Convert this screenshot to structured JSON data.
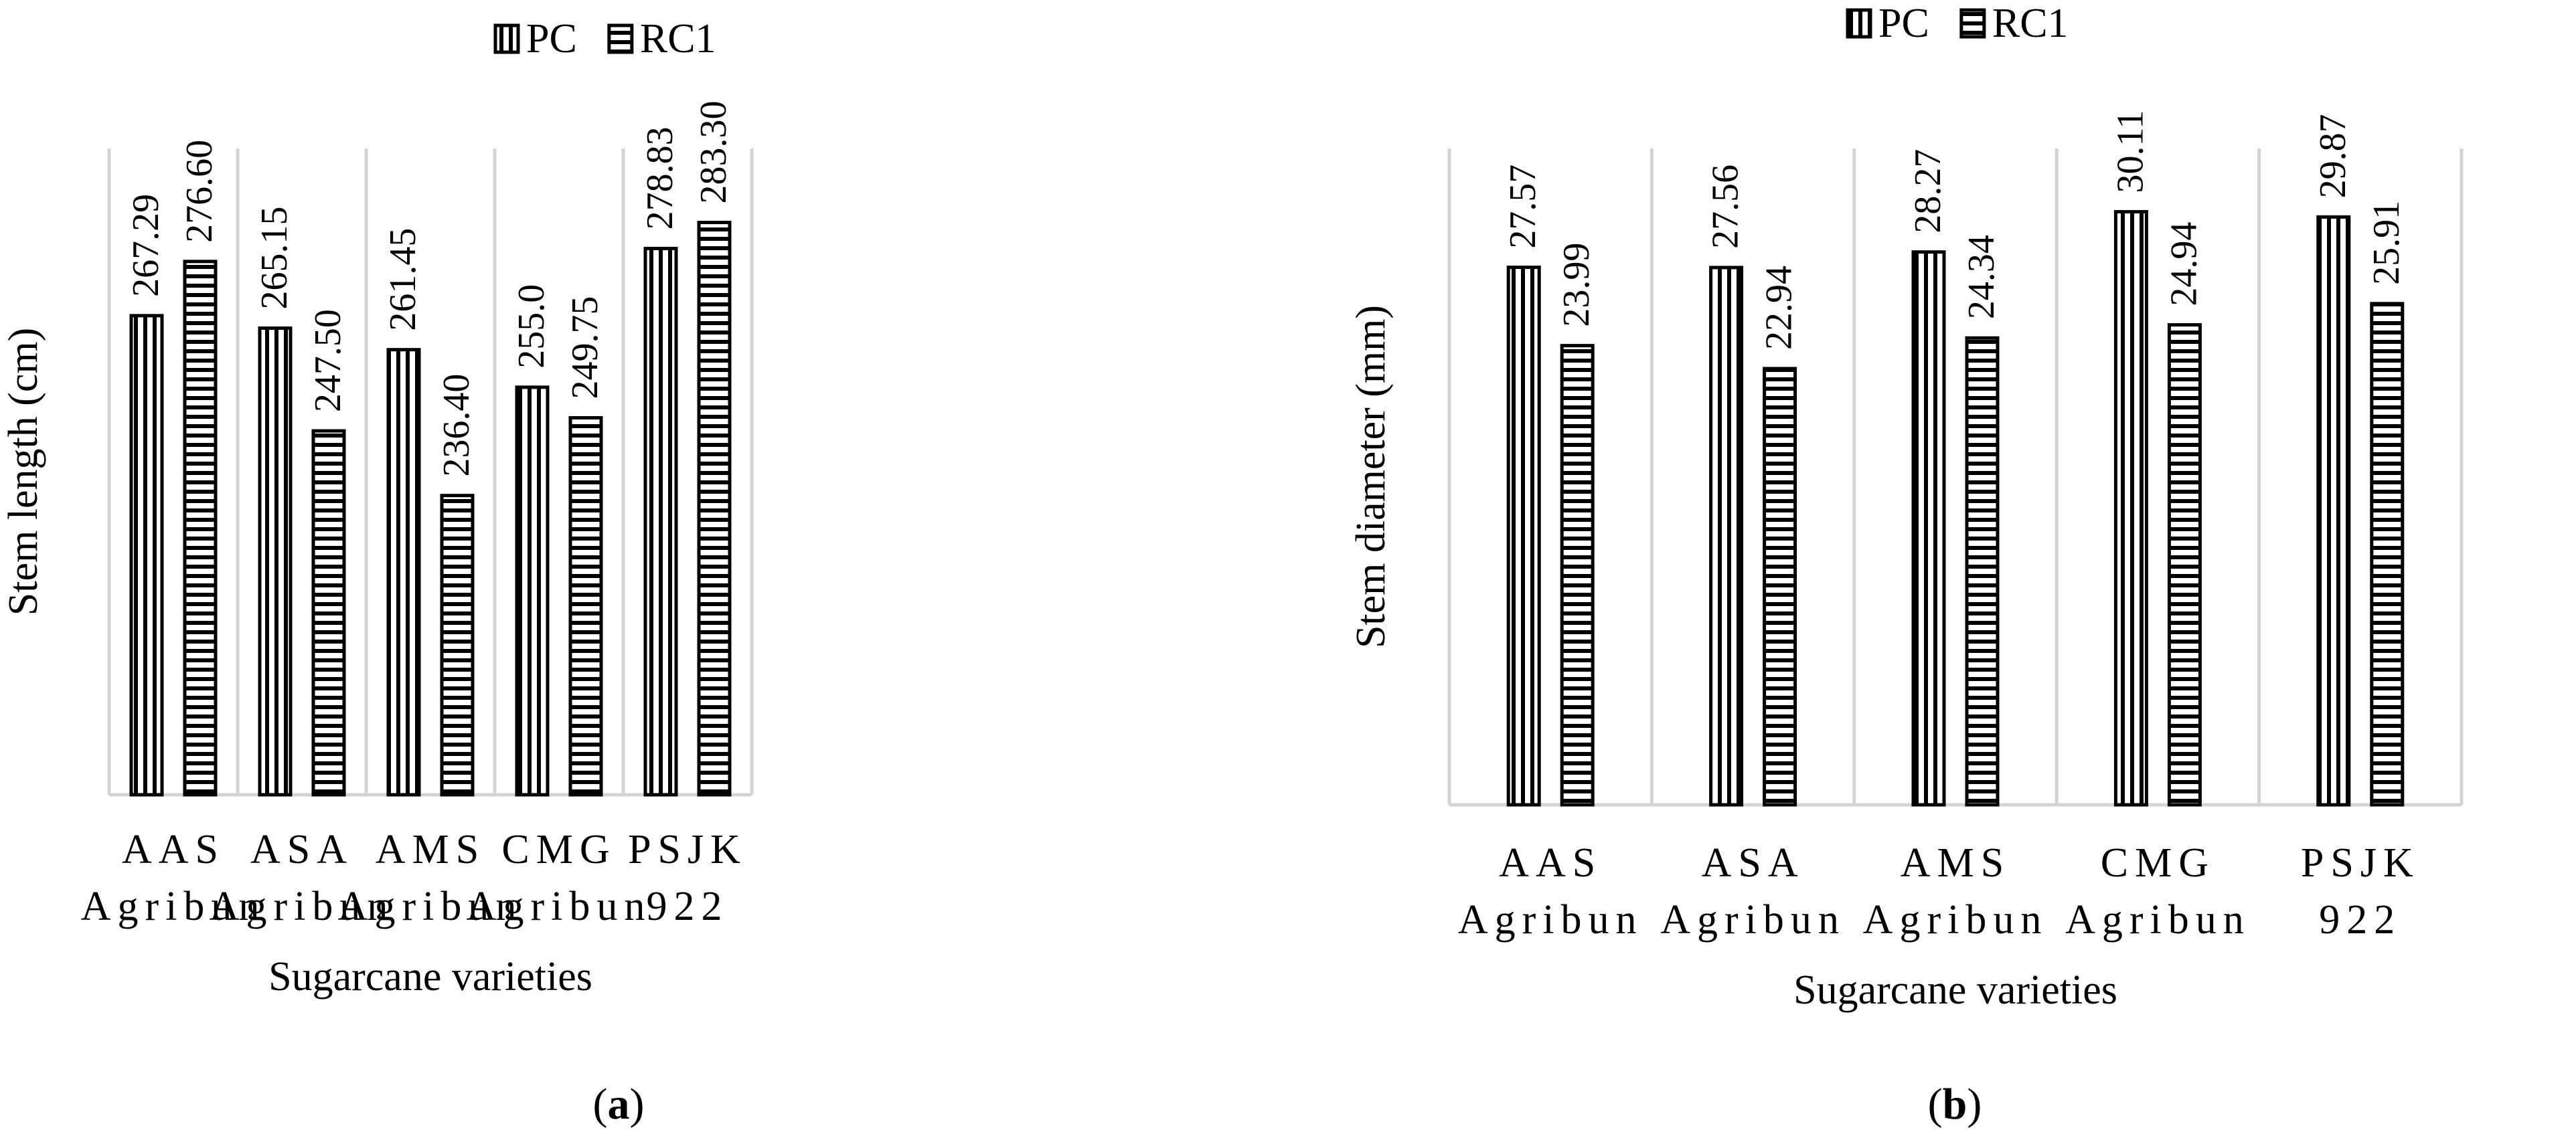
{
  "figure": {
    "panel_a_label": "a",
    "panel_b_label": "b"
  },
  "chart_data": [
    {
      "type": "bar",
      "title": "",
      "xlabel": "Sugarcane varieties",
      "ylabel": "Stem length (cm)",
      "categories": [
        [
          "AAS",
          "Agribun"
        ],
        [
          "ASA",
          "Agribun"
        ],
        [
          "AMS",
          "Agribun"
        ],
        [
          "CMG",
          "Agribun"
        ],
        [
          "PSJK",
          "922"
        ]
      ],
      "series": [
        {
          "name": "PC",
          "pattern": "vertical",
          "values": [
            267.29,
            265.15,
            261.45,
            255.0,
            278.83
          ],
          "labels": [
            "267.29",
            "265.15",
            "261.45",
            "255.0",
            "278.83"
          ]
        },
        {
          "name": "RC1",
          "pattern": "horizontal",
          "values": [
            276.6,
            247.5,
            236.4,
            249.75,
            283.3
          ],
          "labels": [
            "276.60",
            "247.50",
            "236.40",
            "249.75",
            "283.30"
          ]
        }
      ],
      "ylim": [
        185,
        296
      ],
      "grid": "vertical category separators",
      "legend_position": "top-center"
    },
    {
      "type": "bar",
      "title": "",
      "xlabel": "Sugarcane varieties",
      "ylabel": "Stem diameter (mm)",
      "categories": [
        [
          "AAS",
          "Agribun"
        ],
        [
          "ASA",
          "Agribun"
        ],
        [
          "AMS",
          "Agribun"
        ],
        [
          "CMG",
          "Agribun"
        ],
        [
          "PSJK",
          "922"
        ]
      ],
      "series": [
        {
          "name": "PC",
          "pattern": "vertical",
          "values": [
            27.57,
            27.56,
            28.27,
            30.11,
            29.87
          ],
          "labels": [
            "27.57",
            "27.56",
            "28.27",
            "30.11",
            "29.87"
          ]
        },
        {
          "name": "RC1",
          "pattern": "horizontal",
          "values": [
            23.99,
            22.94,
            24.34,
            24.94,
            25.91
          ],
          "labels": [
            "23.99",
            "22.94",
            "24.34",
            "24.94",
            "25.91"
          ]
        }
      ],
      "ylim": [
        3,
        33
      ],
      "grid": "vertical category separators",
      "legend_position": "top-center"
    }
  ]
}
